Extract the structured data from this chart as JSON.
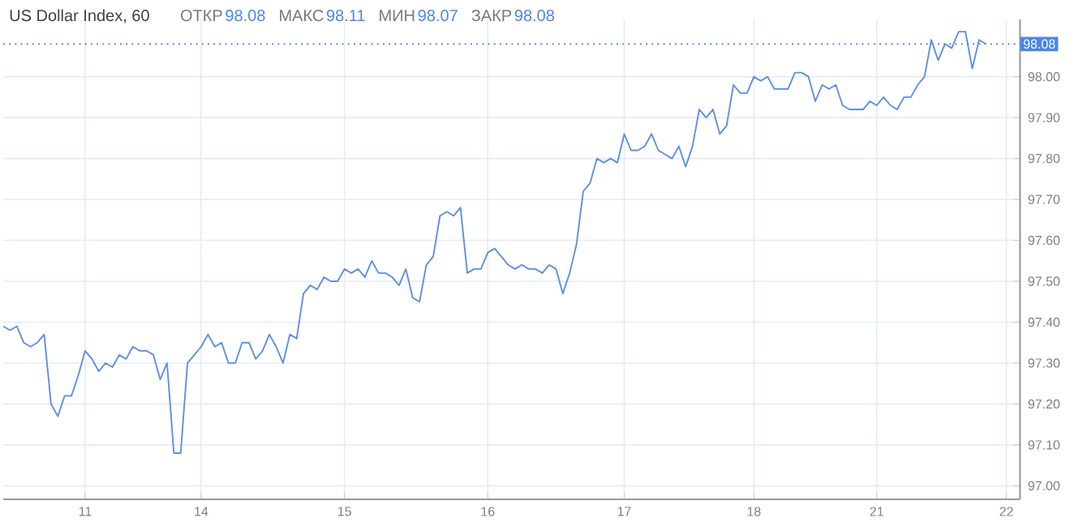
{
  "chart_data": {
    "type": "line",
    "title": "US Dollar Index, 60",
    "annotations": [
      "ОТКР",
      "98.08",
      "МАКС",
      "98.11",
      "МИН",
      "98.07",
      "ЗАКР",
      "98.08"
    ],
    "categories": [
      null,
      null,
      null,
      null,
      null,
      null,
      null,
      null,
      null,
      null,
      null,
      null,
      "11",
      null,
      null,
      null,
      null,
      null,
      null,
      null,
      null,
      null,
      null,
      null,
      null,
      null,
      null,
      null,
      null,
      "14",
      null,
      null,
      null,
      null,
      null,
      null,
      null,
      null,
      null,
      null,
      null,
      null,
      null,
      null,
      null,
      null,
      null,
      null,
      null,
      null,
      "15",
      null,
      null,
      null,
      null,
      null,
      null,
      null,
      null,
      null,
      null,
      null,
      null,
      null,
      null,
      null,
      null,
      null,
      null,
      null,
      null,
      "16",
      null,
      null,
      null,
      null,
      null,
      null,
      null,
      null,
      null,
      null,
      null,
      null,
      null,
      null,
      null,
      null,
      null,
      null,
      null,
      "17",
      null,
      null,
      null,
      null,
      null,
      null,
      null,
      null,
      null,
      null,
      null,
      null,
      null,
      null,
      null,
      null,
      null,
      null,
      "18",
      null,
      null,
      null,
      null,
      null,
      null,
      null,
      null,
      null,
      null,
      null,
      null,
      null,
      null,
      null,
      null,
      null,
      "21",
      null,
      null,
      null,
      null,
      null,
      null,
      null,
      null,
      null,
      null,
      null,
      null,
      null,
      null,
      null,
      null,
      null,
      null,
      "22",
      null,
      null
    ],
    "series": [
      {
        "color": "#5b8ee6",
        "values": [
          97.39,
          97.38,
          97.39,
          97.35,
          97.34,
          97.35,
          97.37,
          97.2,
          97.17,
          97.22,
          97.22,
          97.27,
          97.33,
          97.31,
          97.28,
          97.3,
          97.29,
          97.32,
          97.31,
          97.34,
          97.33,
          97.33,
          97.32,
          97.26,
          97.3,
          97.08,
          97.08,
          97.3,
          97.32,
          97.34,
          97.37,
          97.34,
          97.35,
          97.3,
          97.3,
          97.35,
          97.35,
          97.31,
          97.33,
          97.37,
          97.34,
          97.3,
          97.37,
          97.36,
          97.47,
          97.49,
          97.48,
          97.51,
          97.5,
          97.5,
          97.53,
          97.52,
          97.53,
          97.51,
          97.55,
          97.52,
          97.52,
          97.51,
          97.49,
          97.53,
          97.46,
          97.45,
          97.54,
          97.56,
          97.66,
          97.67,
          97.66,
          97.68,
          97.52,
          97.53,
          97.53,
          97.57,
          97.58,
          97.56,
          97.54,
          97.53,
          97.54,
          97.53,
          97.53,
          97.52,
          97.54,
          97.53,
          97.47,
          97.52,
          97.59,
          97.72,
          97.74,
          97.8,
          97.79,
          97.8,
          97.79,
          97.86,
          97.82,
          97.82,
          97.83,
          97.86,
          97.82,
          97.81,
          97.8,
          97.83,
          97.78,
          97.83,
          97.92,
          97.9,
          97.92,
          97.86,
          97.88,
          97.98,
          97.96,
          97.96,
          98.0,
          97.99,
          98.0,
          97.97,
          97.97,
          97.97,
          98.01,
          98.01,
          98.0,
          97.94,
          97.98,
          97.97,
          97.98,
          97.93,
          97.92,
          97.92,
          97.92,
          97.94,
          97.93,
          97.95,
          97.93,
          97.92,
          97.95,
          97.95,
          97.98,
          98.0,
          98.09,
          98.04,
          98.08,
          98.07,
          98.11,
          98.11,
          98.02,
          98.09,
          98.08,
          null,
          null,
          null,
          null,
          null
        ]
      }
    ],
    "ylim": [
      96.967,
      98.14
    ],
    "yticks": [
      {
        "value": 97.0,
        "label": "97.00"
      },
      {
        "value": 97.1,
        "label": "97.10"
      },
      {
        "value": 97.2,
        "label": "97.20"
      },
      {
        "value": 97.3,
        "label": "97.30"
      },
      {
        "value": 97.4,
        "label": "97.40"
      },
      {
        "value": 97.5,
        "label": "97.50"
      },
      {
        "value": 97.6,
        "label": "97.60"
      },
      {
        "value": 97.7,
        "label": "97.70"
      },
      {
        "value": 97.8,
        "label": "97.80"
      },
      {
        "value": 97.9,
        "label": "97.90"
      },
      {
        "value": 98.0,
        "label": "98.00"
      }
    ],
    "ref_lines": [
      {
        "axis": "y",
        "value": 98.08,
        "label": "98.08",
        "color": "#4a86e8",
        "line_style": "dotted"
      }
    ],
    "grid": true,
    "marker": "none",
    "line_style": "solid"
  }
}
